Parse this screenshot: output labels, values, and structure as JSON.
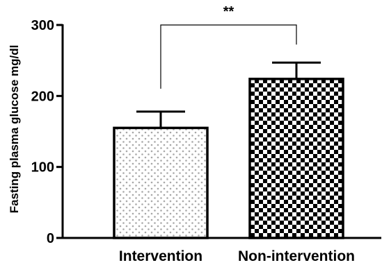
{
  "chart_data": {
    "type": "bar",
    "categories": [
      "Intervention",
      "Non-intervention"
    ],
    "values": [
      155,
      224
    ],
    "error_upper": [
      178,
      247
    ],
    "ylabel": "Fasting plasma glucose mg/dl",
    "xlabel": "",
    "ylim": [
      0,
      300
    ],
    "yticks": [
      "0",
      "100",
      "200",
      "300"
    ],
    "significance": {
      "label": "**",
      "between": [
        "Intervention",
        "Non-intervention"
      ]
    },
    "patterns": [
      "dots",
      "checkerboard"
    ],
    "grid": false
  }
}
